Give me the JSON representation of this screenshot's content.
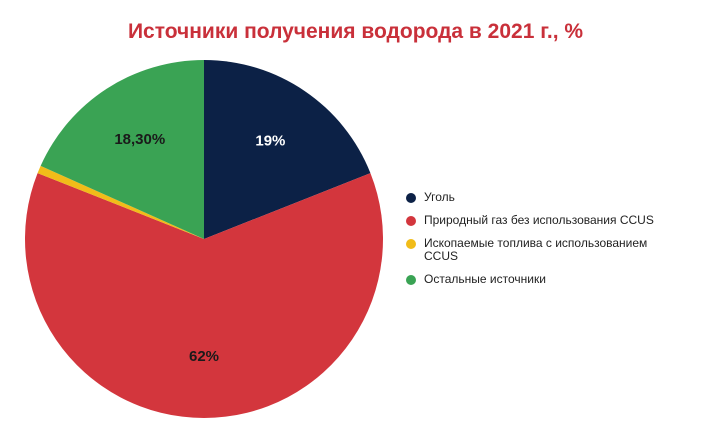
{
  "chart_data": {
    "type": "pie",
    "title": "Источники получения водорода в 2021 г., %",
    "slices": [
      {
        "label": "Уголь",
        "value": 19,
        "display": "19%",
        "color": "#0c2146"
      },
      {
        "label": "Природный газ без использования CCUS",
        "value": 62,
        "display": "62%",
        "color": "#d3363d"
      },
      {
        "label": "Ископаемые топлива с использованием CCUS",
        "value": 0.7,
        "display": "",
        "color": "#f1bc19"
      },
      {
        "label": "Остальные источники",
        "value": 18.3,
        "display": "18,30%",
        "color": "#3aa354"
      }
    ],
    "legend_position": "right"
  }
}
